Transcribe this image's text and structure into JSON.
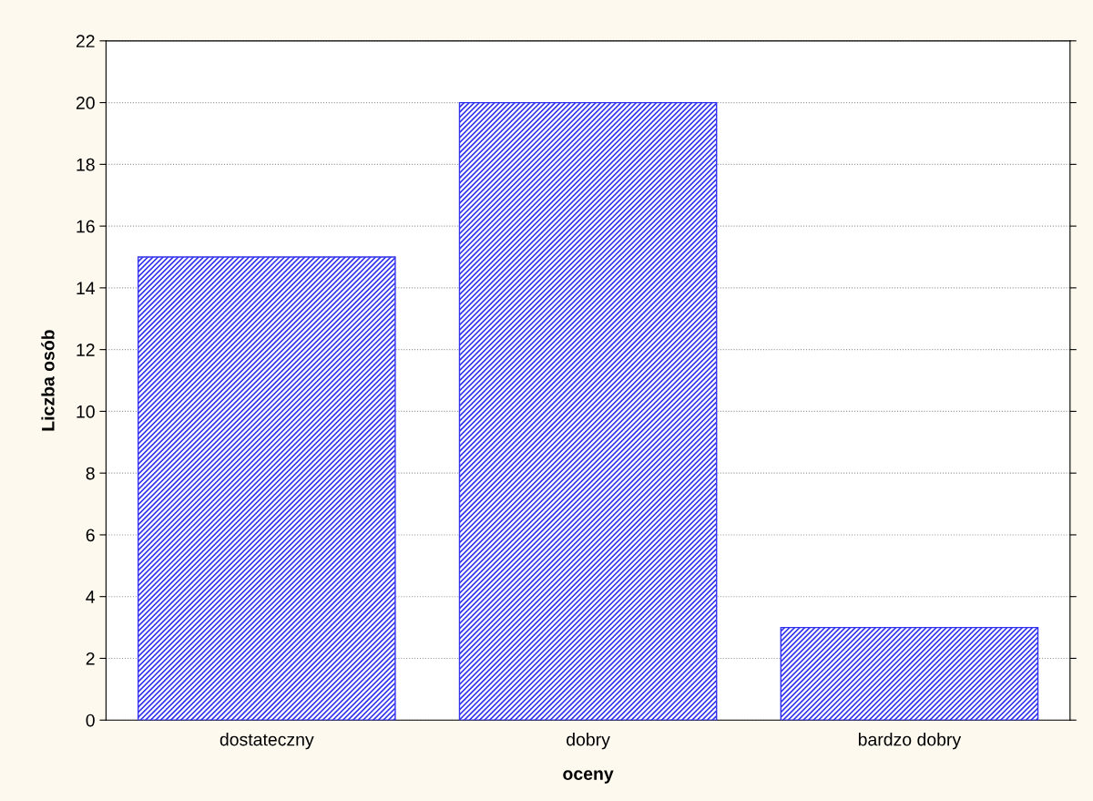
{
  "chart_data": {
    "type": "bar",
    "xlabel": "oceny",
    "ylabel": "Liczba osób",
    "categories": [
      "dostateczny",
      "dobry",
      "bardzo dobry"
    ],
    "values": [
      15,
      20,
      3
    ],
    "color": "#3333ee",
    "ylim": [
      0,
      22
    ],
    "yticks": [
      0,
      2,
      4,
      6,
      8,
      10,
      12,
      14,
      16,
      18,
      20,
      22
    ],
    "grid": "y"
  }
}
